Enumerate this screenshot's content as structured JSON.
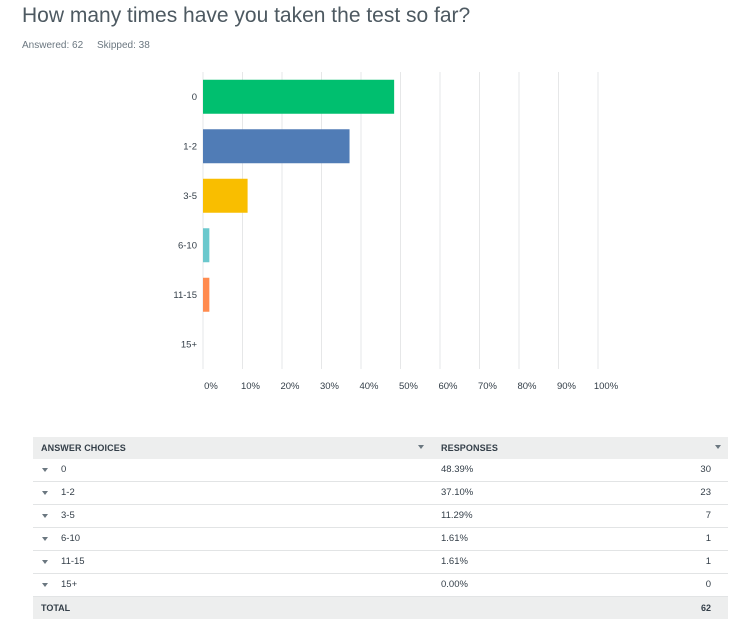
{
  "question": {
    "title": "How many times have you taken the test so far?",
    "answered": "Answered: 62",
    "skipped": "Skipped: 38"
  },
  "colors": {
    "green": "#00bf6f",
    "blue": "#507cb6",
    "yellow": "#f9be00",
    "teal": "#6bc8cd",
    "orange": "#ff8b4f",
    "grid": "#e6e7e8",
    "header_bg": "#edeeee"
  },
  "chart_data": {
    "type": "bar",
    "orientation": "horizontal",
    "categories": [
      "0",
      "1-2",
      "3-5",
      "6-10",
      "11-15",
      "15+"
    ],
    "values": [
      48.39,
      37.1,
      11.29,
      1.61,
      1.61,
      0.0
    ],
    "colors": [
      "#00bf6f",
      "#507cb6",
      "#f9be00",
      "#6bc8cd",
      "#ff8b4f",
      "#00bf6f"
    ],
    "xlim": [
      0,
      100
    ],
    "x_ticks": [
      "0%",
      "10%",
      "20%",
      "30%",
      "40%",
      "50%",
      "60%",
      "70%",
      "80%",
      "90%",
      "100%"
    ],
    "title": "",
    "xlabel": "",
    "ylabel": "",
    "grid": true
  },
  "table": {
    "headers": {
      "choices": "ANSWER CHOICES",
      "responses": "RESPONSES"
    },
    "rows": [
      {
        "choice": "0",
        "percent": "48.39%",
        "count": "30"
      },
      {
        "choice": "1-2",
        "percent": "37.10%",
        "count": "23"
      },
      {
        "choice": "3-5",
        "percent": "11.29%",
        "count": "7"
      },
      {
        "choice": "6-10",
        "percent": "1.61%",
        "count": "1"
      },
      {
        "choice": "11-15",
        "percent": "1.61%",
        "count": "1"
      },
      {
        "choice": "15+",
        "percent": "0.00%",
        "count": "0"
      }
    ],
    "total": {
      "label": "TOTAL",
      "count": "62"
    }
  }
}
